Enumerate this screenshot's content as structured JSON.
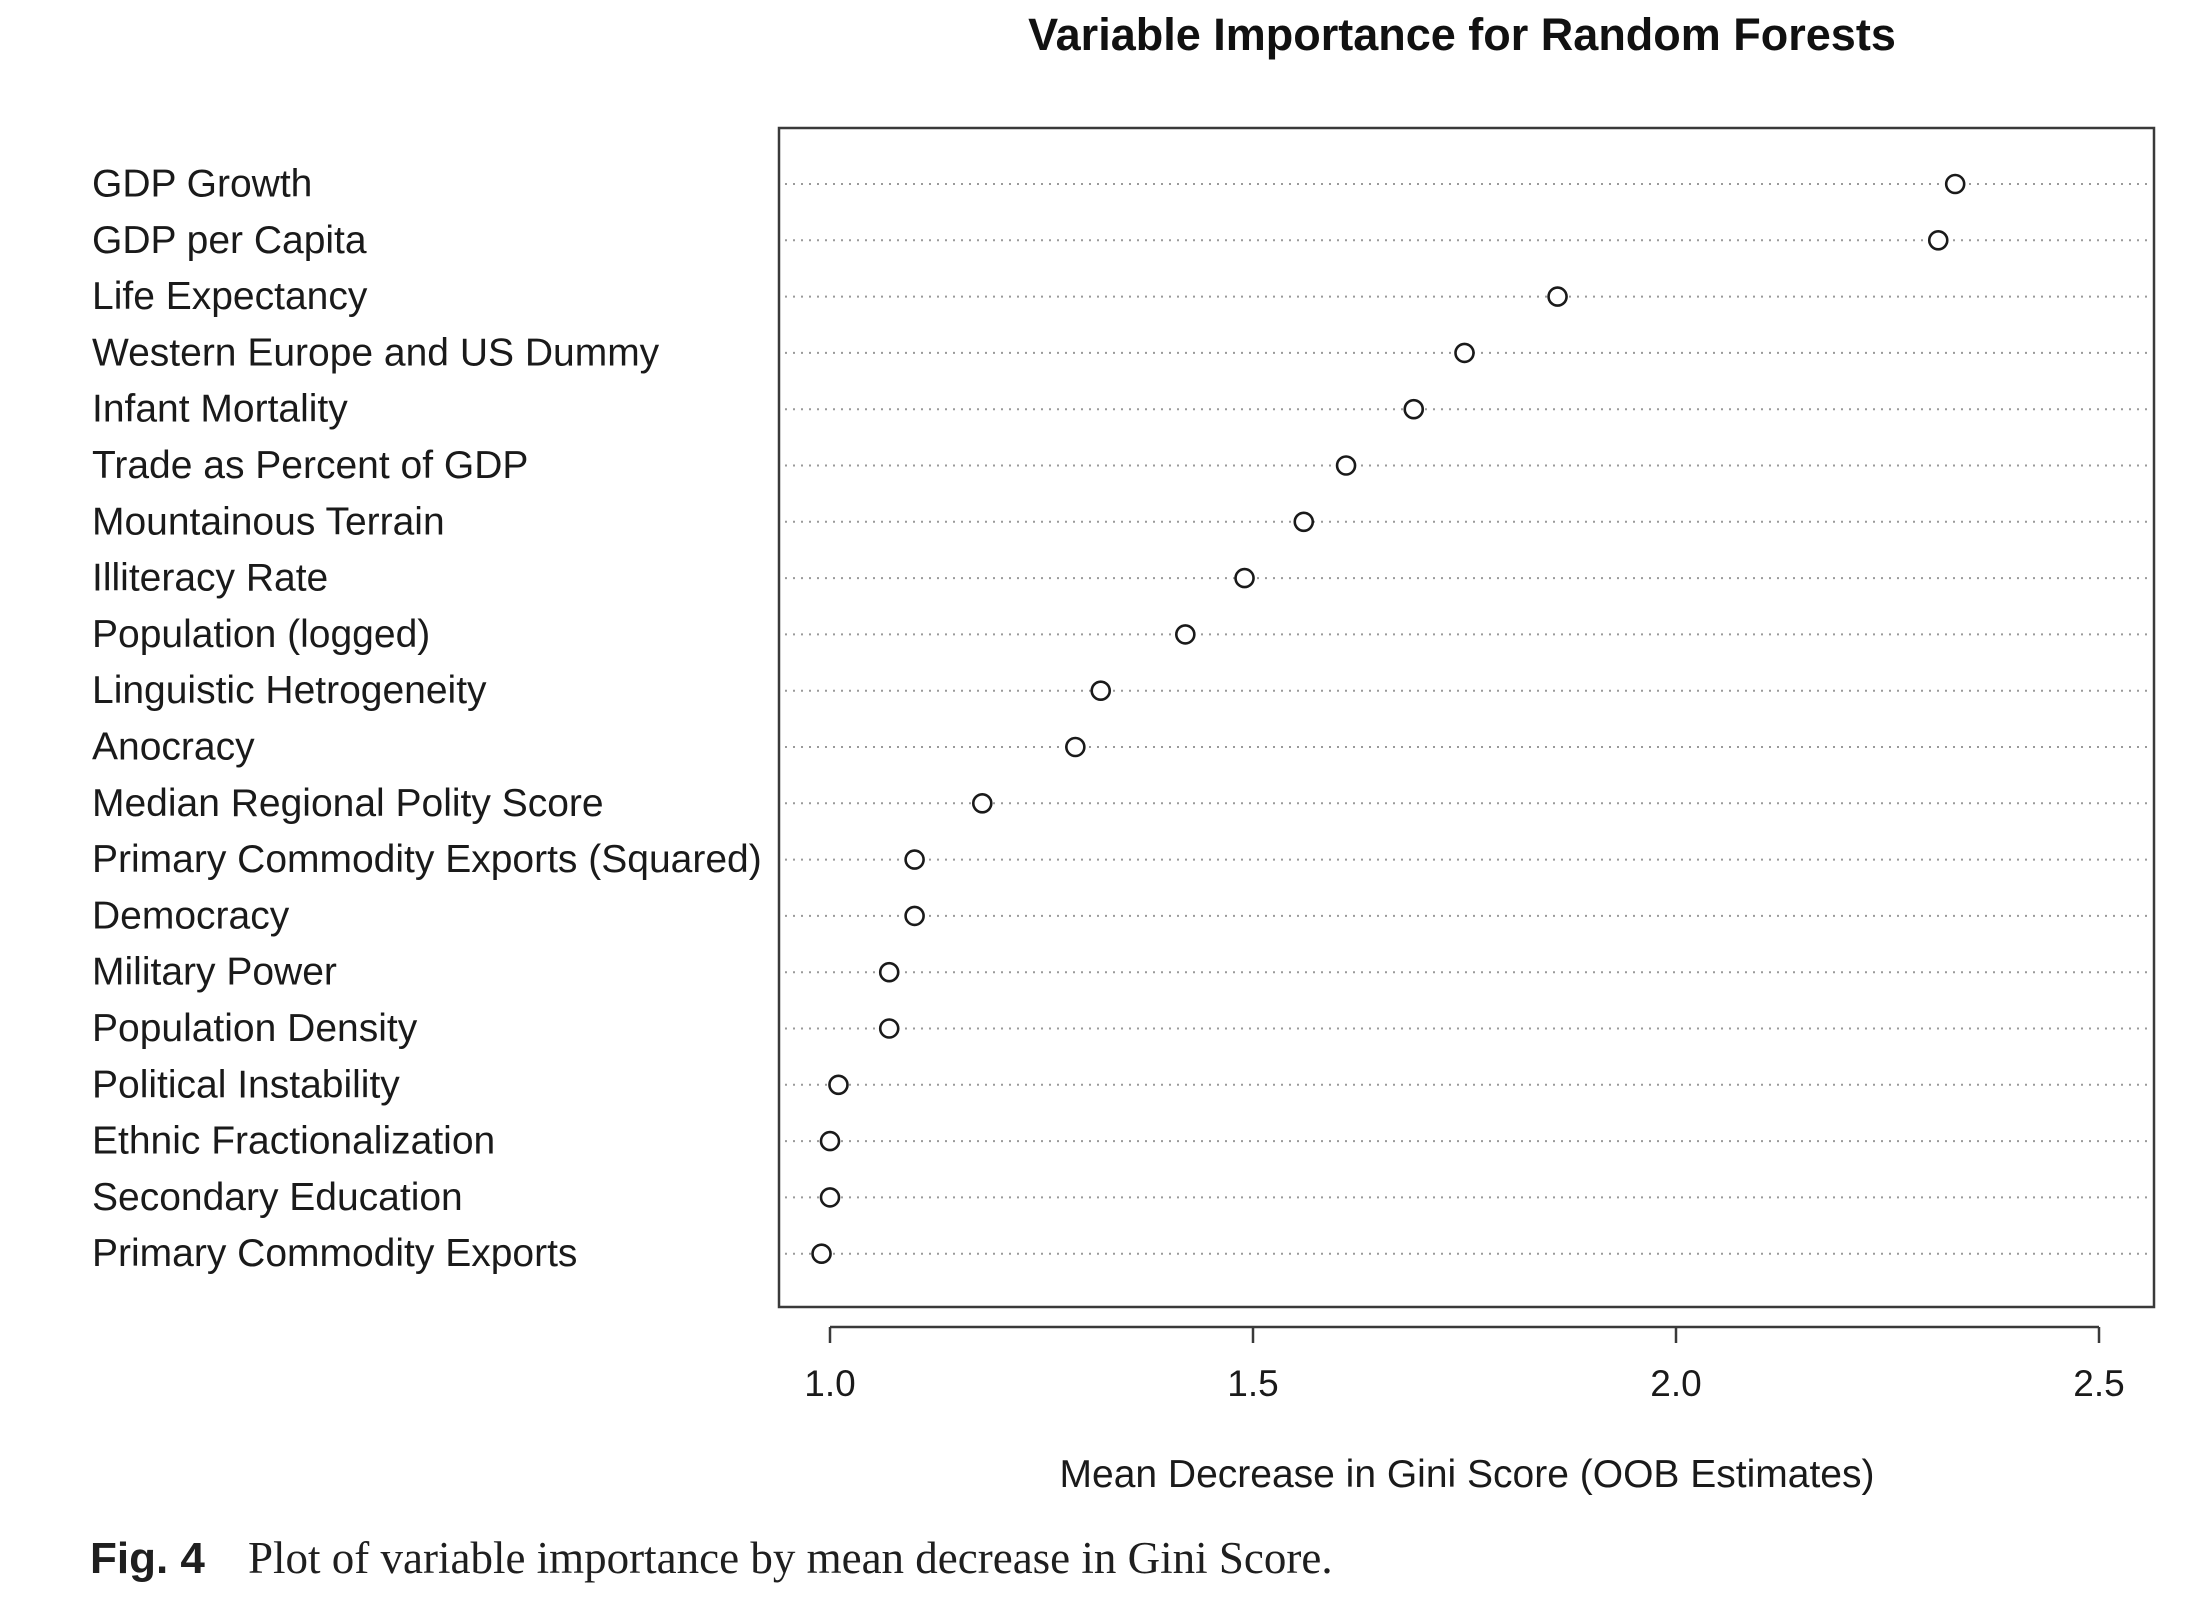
{
  "chart_data": {
    "type": "scatter",
    "title": "Variable Importance for Random Forests",
    "xlabel": "Mean Decrease in Gini Score (OOB Estimates)",
    "ylabel": "",
    "xlim": [
      0.94,
      2.56
    ],
    "x_ticks": [
      "1.0",
      "1.5",
      "2.0",
      "2.5"
    ],
    "grid": "dotted horizontal lines per variable",
    "marker": "open circle",
    "categories": [
      "GDP Growth",
      "GDP per Capita",
      "Life Expectancy",
      "Western Europe and US Dummy",
      "Infant Mortality",
      "Trade as Percent of GDP",
      "Mountainous Terrain",
      "Illiteracy Rate",
      "Population (logged)",
      "Linguistic Hetrogeneity",
      "Anocracy",
      "Median Regional Polity Score",
      "Primary Commodity Exports (Squared)",
      "Democracy",
      "Military Power",
      "Population Density",
      "Political Instability",
      "Ethnic Fractionalization",
      "Secondary Education",
      "Primary Commodity Exports"
    ],
    "values": [
      2.33,
      2.31,
      1.86,
      1.75,
      1.69,
      1.61,
      1.56,
      1.49,
      1.42,
      1.32,
      1.29,
      1.18,
      1.1,
      1.1,
      1.07,
      1.07,
      1.01,
      1.0,
      1.0,
      0.99
    ]
  },
  "caption": {
    "prefix": "Fig. 4",
    "text": "Plot of variable importance by mean decrease in Gini Score."
  },
  "colors": {
    "ink": "#1a1a1a",
    "frame": "#3a3a3a",
    "grid": "#9a9a9a"
  }
}
